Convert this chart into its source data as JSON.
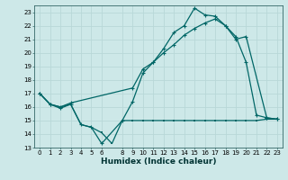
{
  "xlabel": "Humidex (Indice chaleur)",
  "bg_color": "#cde8e8",
  "grid_color": "#b8d8d8",
  "line_color": "#006666",
  "xlim": [
    -0.5,
    23.5
  ],
  "ylim": [
    13,
    23.5
  ],
  "yticks": [
    13,
    14,
    15,
    16,
    17,
    18,
    19,
    20,
    21,
    22,
    23
  ],
  "xtick_vals": [
    0,
    1,
    2,
    3,
    4,
    5,
    6,
    8,
    9,
    10,
    11,
    12,
    13,
    14,
    15,
    16,
    17,
    18,
    19,
    20,
    21,
    22,
    23
  ],
  "xtick_labels": [
    "0",
    "1",
    "2",
    "3",
    "4",
    "5",
    "6",
    "8",
    "9",
    "10",
    "11",
    "12",
    "13",
    "14",
    "15",
    "16",
    "17",
    "18",
    "19",
    "20",
    "21",
    "22",
    "23"
  ],
  "line1_x": [
    0,
    1,
    2,
    3,
    4,
    5,
    6,
    8,
    9,
    10,
    11,
    12,
    13,
    14,
    15,
    16,
    17,
    18,
    19,
    20,
    21,
    22,
    23
  ],
  "line1_y": [
    17.0,
    16.2,
    15.9,
    16.2,
    14.7,
    14.5,
    13.3,
    15.0,
    16.4,
    18.5,
    19.3,
    20.3,
    21.5,
    22.0,
    23.3,
    22.8,
    22.7,
    22.0,
    21.2,
    19.3,
    15.4,
    15.2,
    15.1
  ],
  "line2_x": [
    0,
    1,
    2,
    3,
    9,
    10,
    11,
    12,
    13,
    14,
    15,
    16,
    17,
    18,
    19,
    20,
    22,
    23
  ],
  "line2_y": [
    17.0,
    16.2,
    16.0,
    16.3,
    17.4,
    18.8,
    19.3,
    20.0,
    20.6,
    21.3,
    21.8,
    22.2,
    22.5,
    22.0,
    21.0,
    21.2,
    15.2,
    15.1
  ],
  "line3_x": [
    0,
    1,
    2,
    3,
    4,
    5,
    6,
    7,
    8,
    9,
    10,
    11,
    12,
    13,
    14,
    15,
    16,
    17,
    18,
    19,
    20,
    21,
    22,
    23
  ],
  "line3_y": [
    17.0,
    16.2,
    16.0,
    16.2,
    14.7,
    14.5,
    14.1,
    13.3,
    15.0,
    15.0,
    15.0,
    15.0,
    15.0,
    15.0,
    15.0,
    15.0,
    15.0,
    15.0,
    15.0,
    15.0,
    15.0,
    15.0,
    15.1,
    15.1
  ],
  "marker_size": 2.5,
  "line_width": 0.9,
  "tick_fontsize": 5.0,
  "xlabel_fontsize": 6.5
}
